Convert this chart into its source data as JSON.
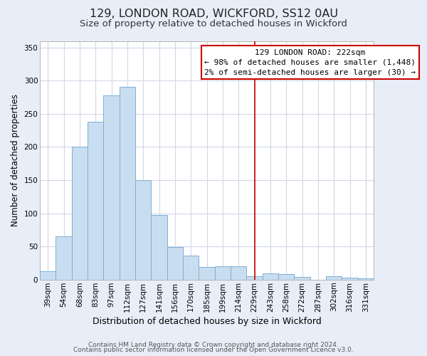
{
  "title": "129, LONDON ROAD, WICKFORD, SS12 0AU",
  "subtitle": "Size of property relative to detached houses in Wickford",
  "xlabel": "Distribution of detached houses by size in Wickford",
  "ylabel": "Number of detached properties",
  "bar_labels": [
    "39sqm",
    "54sqm",
    "68sqm",
    "83sqm",
    "97sqm",
    "112sqm",
    "127sqm",
    "141sqm",
    "156sqm",
    "170sqm",
    "185sqm",
    "199sqm",
    "214sqm",
    "229sqm",
    "243sqm",
    "258sqm",
    "272sqm",
    "287sqm",
    "302sqm",
    "316sqm",
    "331sqm"
  ],
  "bar_values": [
    13,
    65,
    200,
    238,
    278,
    291,
    150,
    97,
    49,
    36,
    19,
    20,
    20,
    5,
    9,
    8,
    4,
    0,
    5,
    3,
    2
  ],
  "bar_color": "#c9ddf0",
  "bar_edge_color": "#7bafd4",
  "plot_bg": "#ffffff",
  "fig_bg": "#e8eef8",
  "ylim": [
    0,
    360
  ],
  "yticks": [
    0,
    50,
    100,
    150,
    200,
    250,
    300,
    350
  ],
  "vline_x_index": 13,
  "vline_color": "#cc0000",
  "annotation_title": "129 LONDON ROAD: 222sqm",
  "annotation_line1": "← 98% of detached houses are smaller (1,448)",
  "annotation_line2": "2% of semi-detached houses are larger (30) →",
  "annotation_box_edgecolor": "#cc0000",
  "annotation_box_facecolor": "#ffffff",
  "footer_line1": "Contains HM Land Registry data © Crown copyright and database right 2024.",
  "footer_line2": "Contains public sector information licensed under the Open Government Licence v3.0.",
  "title_fontsize": 11.5,
  "subtitle_fontsize": 9.5,
  "xlabel_fontsize": 9,
  "ylabel_fontsize": 8.5,
  "tick_fontsize": 7.5,
  "annotation_fontsize": 8,
  "footer_fontsize": 6.5,
  "grid_color": "#d0d8e8",
  "spine_color": "#aaaaaa"
}
